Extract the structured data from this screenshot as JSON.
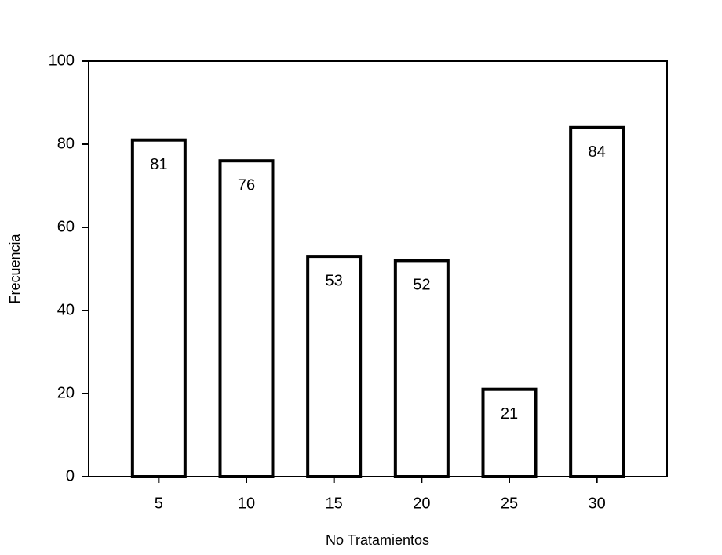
{
  "chart_data": {
    "type": "bar",
    "x_label": "No Tratamientos",
    "y_label": "Frecuencia",
    "categories": [
      "5",
      "10",
      "15",
      "20",
      "25",
      "30"
    ],
    "values": [
      81,
      76,
      53,
      52,
      21,
      84
    ],
    "color": "#ffffff",
    "ylim": [
      0,
      100
    ],
    "yticks": [
      0,
      20,
      40,
      60,
      80,
      100
    ],
    "grid": false
  }
}
